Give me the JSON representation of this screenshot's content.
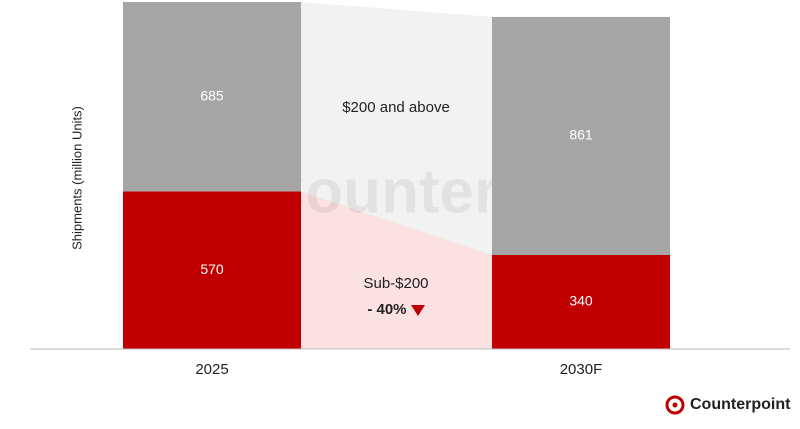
{
  "chart_data": {
    "type": "bar",
    "stacked": true,
    "y_label": "Shipments (million Units)",
    "categories": [
      "2025",
      "2030F"
    ],
    "series": [
      {
        "name": "Sub-$200",
        "color": "#c00000",
        "values": [
          570,
          340
        ]
      },
      {
        "name": "$200 and above",
        "color": "#a6a6a6",
        "values": [
          685,
          861
        ]
      }
    ],
    "annotations": [
      "- 40%"
    ]
  },
  "branding": {
    "watermark": "Counterpoint",
    "logo": "Counterpoint"
  }
}
